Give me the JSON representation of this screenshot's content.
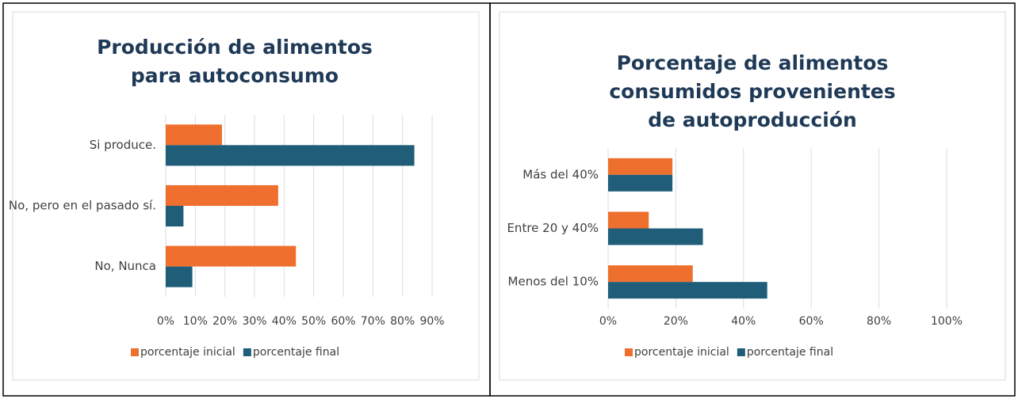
{
  "chart_data": [
    {
      "type": "bar",
      "orientation": "horizontal",
      "title": "Producción de alimentos para autoconsumo",
      "categories": [
        "Si produce.",
        "No, pero en el pasado sí.",
        "No, Nunca"
      ],
      "series": [
        {
          "name": "porcentaje inicial",
          "color": "#ef6f2e",
          "values": [
            19,
            38,
            44
          ]
        },
        {
          "name": "porcentaje final",
          "color": "#1f5d78",
          "values": [
            84,
            6,
            9
          ]
        }
      ],
      "xlim": [
        0,
        90
      ],
      "xticks": [
        {
          "value": 0,
          "label": "0%"
        },
        {
          "value": 10,
          "label": "10%"
        },
        {
          "value": 20,
          "label": "20%"
        },
        {
          "value": 30,
          "label": "30%"
        },
        {
          "value": 40,
          "label": "40%"
        },
        {
          "value": 50,
          "label": "50%"
        },
        {
          "value": 60,
          "label": "60%"
        },
        {
          "value": 70,
          "label": "70%"
        },
        {
          "value": 80,
          "label": "80%"
        },
        {
          "value": 90,
          "label": "90%"
        }
      ],
      "grid": true,
      "legend": "bottom"
    },
    {
      "type": "bar",
      "orientation": "horizontal",
      "title": "Porcentaje de alimentos consumidos provenientes de autoproducción",
      "categories": [
        "Más del 40%",
        "Entre 20 y 40%",
        "Menos del 10%"
      ],
      "series": [
        {
          "name": "porcentaje inicial",
          "color": "#ef6f2e",
          "values": [
            19,
            12,
            25
          ]
        },
        {
          "name": "porcentaje final",
          "color": "#1f5d78",
          "values": [
            19,
            28,
            47
          ]
        }
      ],
      "xlim": [
        0,
        100
      ],
      "xticks": [
        {
          "value": 0,
          "label": "0%"
        },
        {
          "value": 20,
          "label": "20%"
        },
        {
          "value": 40,
          "label": "40%"
        },
        {
          "value": 60,
          "label": "60%"
        },
        {
          "value": 80,
          "label": "80%"
        },
        {
          "value": 100,
          "label": "100%"
        }
      ],
      "grid": true,
      "legend": "bottom"
    }
  ]
}
